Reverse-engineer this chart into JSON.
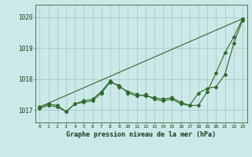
{
  "title": "Graphe pression niveau de la mer (hPa)",
  "bg_color": "#cce8e8",
  "grid_color": "#aacccc",
  "line_color": "#2d6a2d",
  "xlim": [
    -0.5,
    23.5
  ],
  "ylim": [
    1016.6,
    1020.4
  ],
  "yticks": [
    1017,
    1018,
    1019,
    1020
  ],
  "xticks": [
    0,
    1,
    2,
    3,
    4,
    5,
    6,
    7,
    8,
    9,
    10,
    11,
    12,
    13,
    14,
    15,
    16,
    17,
    18,
    19,
    20,
    21,
    22,
    23
  ],
  "series1_x": [
    0,
    1,
    2,
    3,
    4,
    5,
    6,
    7,
    8,
    9,
    10,
    11,
    12,
    13,
    14,
    15,
    16,
    17,
    18,
    19,
    20,
    21,
    22,
    23
  ],
  "series1_y": [
    1017.1,
    1017.2,
    1017.15,
    1016.95,
    1017.2,
    1017.25,
    1017.3,
    1017.55,
    1017.9,
    1017.8,
    1017.55,
    1017.45,
    1017.5,
    1017.35,
    1017.3,
    1017.35,
    1017.2,
    1017.15,
    1017.15,
    1017.6,
    1018.2,
    1018.85,
    1019.35,
    1019.95
  ],
  "series2_x": [
    0,
    1,
    2,
    3,
    4,
    5,
    6,
    7,
    8,
    9,
    10,
    11,
    12,
    13,
    14,
    15,
    16,
    17,
    18,
    19,
    20,
    21,
    22,
    23
  ],
  "series2_y": [
    1017.05,
    1017.15,
    1017.1,
    1016.95,
    1017.2,
    1017.3,
    1017.35,
    1017.6,
    1017.95,
    1017.75,
    1017.6,
    1017.5,
    1017.45,
    1017.4,
    1017.35,
    1017.4,
    1017.25,
    1017.15,
    1017.55,
    1017.7,
    1017.75,
    1018.15,
    1019.15,
    1019.9
  ],
  "trend_x": [
    0,
    23
  ],
  "trend_y": [
    1017.1,
    1019.95
  ]
}
